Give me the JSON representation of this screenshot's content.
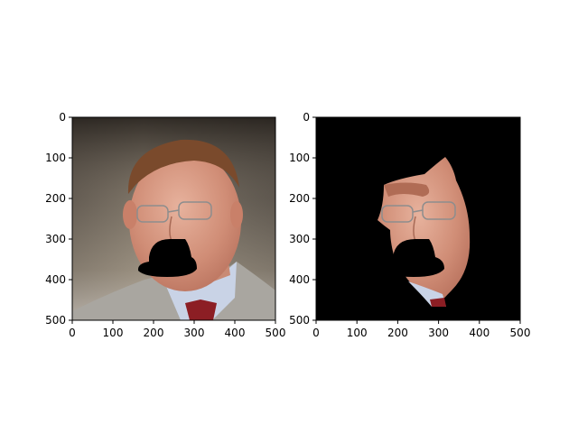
{
  "figure": {
    "panels": [
      {
        "name": "original-face-image",
        "content": "portrait with mouth region masked black",
        "x_ticks": [
          "0",
          "100",
          "200",
          "300",
          "400",
          "500"
        ],
        "y_ticks": [
          "0",
          "100",
          "200",
          "300",
          "400",
          "500"
        ]
      },
      {
        "name": "segmented-face-image",
        "content": "face region only on black background, mouth masked",
        "x_ticks": [
          "0",
          "100",
          "200",
          "300",
          "400",
          "500"
        ],
        "y_ticks": [
          "0",
          "100",
          "200",
          "300",
          "400",
          "500"
        ]
      }
    ],
    "colors": {
      "background": "#ffffff",
      "mask": "#000000",
      "skin": "#d89a83",
      "hair": "#7a4a2c",
      "suit": "#a9a6a0",
      "shirt": "#c9d3e6",
      "tie": "#8c1e24"
    }
  }
}
